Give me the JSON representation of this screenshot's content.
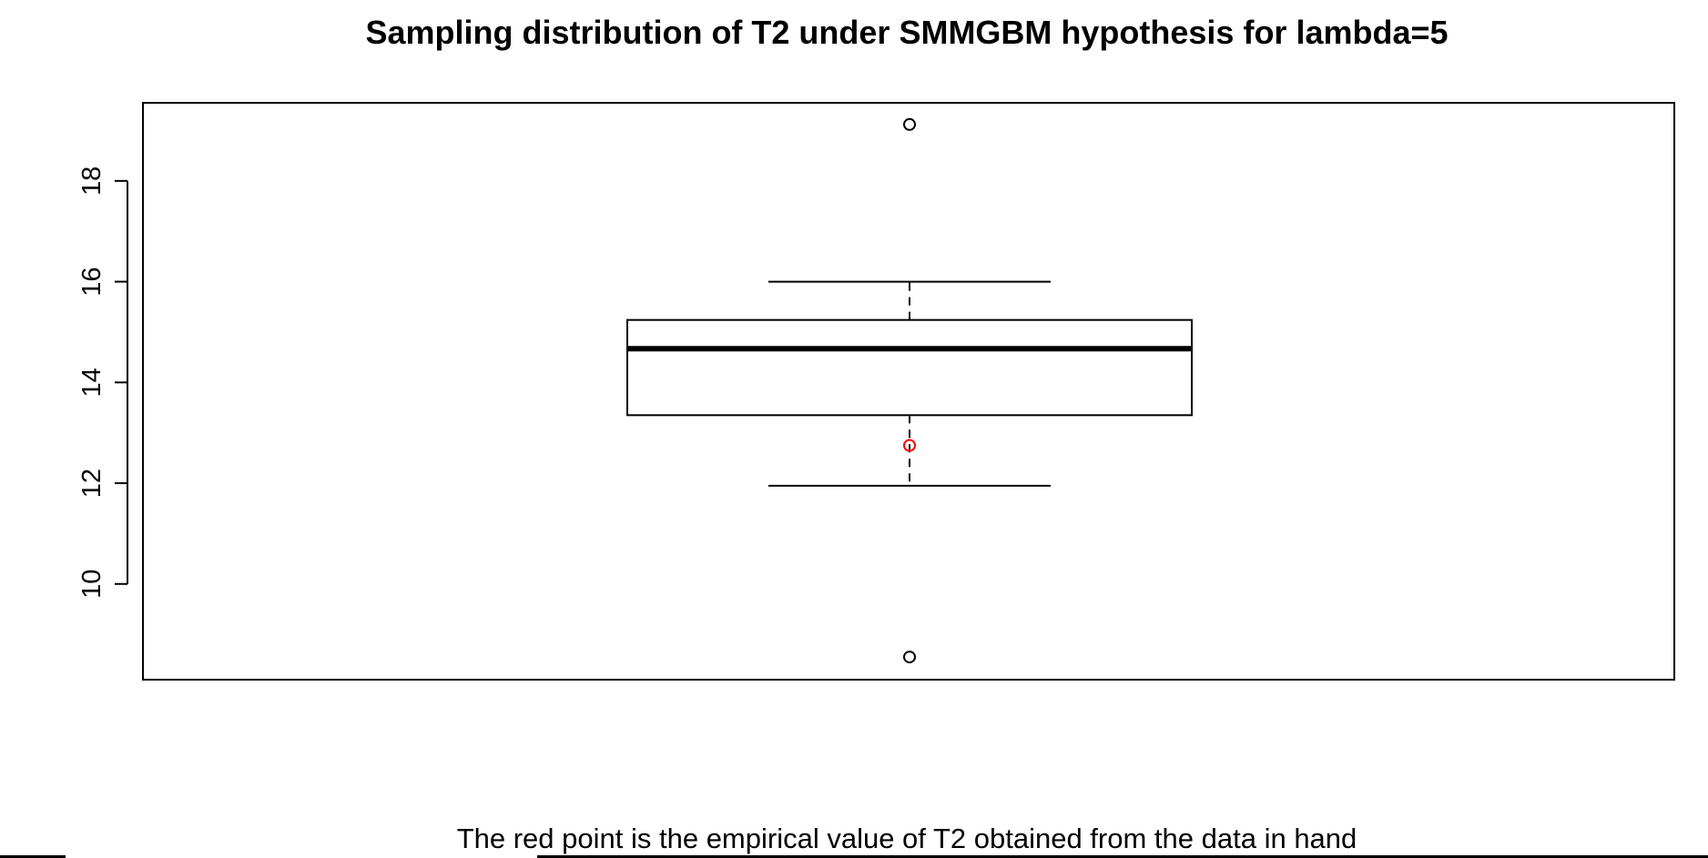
{
  "chart_data": {
    "type": "box",
    "title": "Sampling distribution of T2 under SMMGBM hypothesis for lambda=5",
    "xlabel": "The red point is the empirical value of T2 obtained from the data in hand",
    "ylabel": "",
    "ylim": [
      8.1,
      19.55
    ],
    "yticks": [
      10,
      12,
      14,
      16,
      18
    ],
    "grid": false,
    "box": {
      "whisker_low": 11.95,
      "q1": 13.35,
      "median": 14.67,
      "q3": 15.24,
      "whisker_high": 16.0,
      "outliers": [
        19.12,
        8.55
      ]
    },
    "highlight_point": {
      "value": 12.75,
      "color": "#ff0000"
    },
    "colors": {
      "box_outline": "#000000",
      "median": "#000000",
      "outlier": "#000000",
      "highlight": "#ff0000"
    }
  }
}
